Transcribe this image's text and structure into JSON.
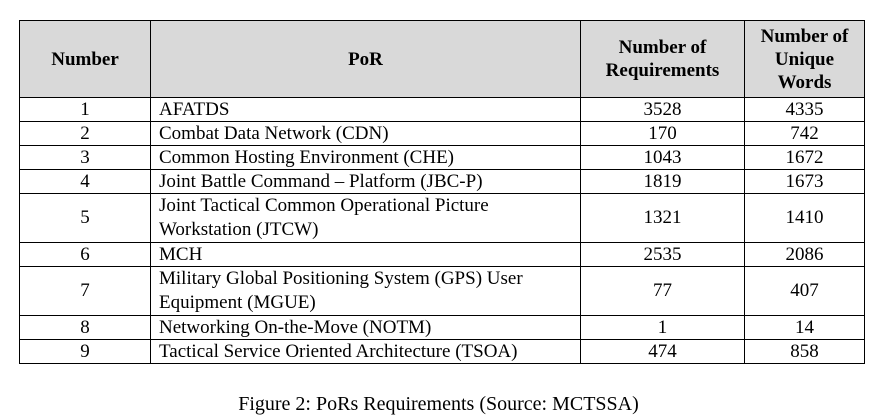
{
  "table": {
    "headers": {
      "number": "Number",
      "por": "PoR",
      "requirements": "Number of Requirements",
      "unique_words": "Number of Unique Words"
    },
    "rows": [
      {
        "number": "1",
        "por": "AFATDS",
        "requirements": "3528",
        "unique_words": "4335"
      },
      {
        "number": "2",
        "por": "Combat Data Network (CDN)",
        "requirements": "170",
        "unique_words": "742"
      },
      {
        "number": "3",
        "por": "Common Hosting Environment (CHE)",
        "requirements": "1043",
        "unique_words": "1672"
      },
      {
        "number": "4",
        "por": "Joint Battle Command – Platform (JBC-P)",
        "requirements": "1819",
        "unique_words": "1673"
      },
      {
        "number": "5",
        "por": "Joint Tactical Common Operational Picture Workstation (JTCW)",
        "requirements": "1321",
        "unique_words": "1410"
      },
      {
        "number": "6",
        "por": "MCH",
        "requirements": "2535",
        "unique_words": "2086"
      },
      {
        "number": "7",
        "por": "Military Global Positioning System (GPS) User Equipment (MGUE)",
        "requirements": "77",
        "unique_words": "407"
      },
      {
        "number": "8",
        "por": "Networking On-the-Move (NOTM)",
        "requirements": "1",
        "unique_words": "14"
      },
      {
        "number": "9",
        "por": "Tactical Service Oriented Architecture (TSOA)",
        "requirements": "474",
        "unique_words": "858"
      }
    ]
  },
  "caption": "Figure 2: PoRs Requirements (Source: MCTSSA)",
  "colors": {
    "header_background": "#d9d9d9",
    "border": "#000000",
    "text": "#000000"
  }
}
